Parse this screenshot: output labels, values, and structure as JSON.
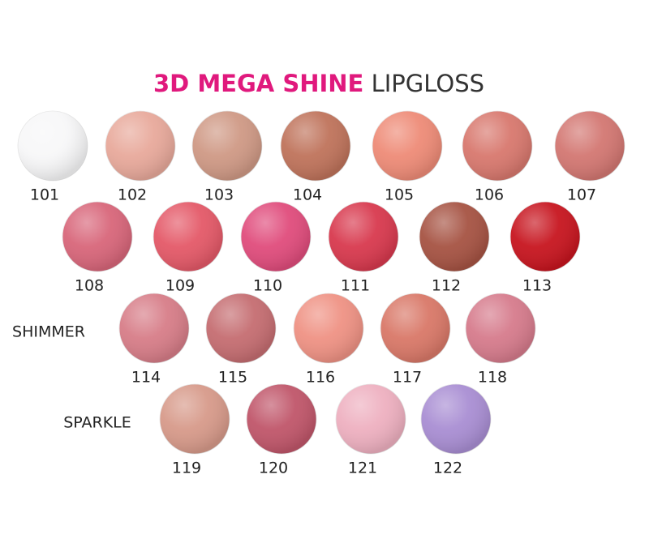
{
  "title": {
    "brand": "3D MEGA SHINE",
    "product": "LIPGLOSS"
  },
  "groups": [
    {
      "swatches": [
        {
          "code": "101",
          "color": "#f7f7f8"
        },
        {
          "code": "102",
          "color": "#e8a99b"
        },
        {
          "code": "103",
          "color": "#cf9985"
        },
        {
          "code": "104",
          "color": "#bf735b"
        },
        {
          "code": "105",
          "color": "#ee8b77"
        },
        {
          "code": "106",
          "color": "#d8786e"
        },
        {
          "code": "107",
          "color": "#d37772"
        }
      ]
    },
    {
      "swatches": [
        {
          "code": "108",
          "color": "#d8667a"
        },
        {
          "code": "109",
          "color": "#e45968"
        },
        {
          "code": "110",
          "color": "#e04c7c"
        },
        {
          "code": "111",
          "color": "#d8394e"
        },
        {
          "code": "112",
          "color": "#a65343"
        },
        {
          "code": "113",
          "color": "#c7151f"
        }
      ]
    },
    {
      "label": "SHIMMER",
      "swatches": [
        {
          "code": "114",
          "color": "#d77d88"
        },
        {
          "code": "115",
          "color": "#c56d71"
        },
        {
          "code": "116",
          "color": "#ef9284"
        },
        {
          "code": "117",
          "color": "#d97868"
        },
        {
          "code": "118",
          "color": "#d67b8c"
        }
      ]
    },
    {
      "label": "SPARKLE",
      "swatches": [
        {
          "code": "119",
          "color": "#d79a8a"
        },
        {
          "code": "120",
          "color": "#c0566a"
        },
        {
          "code": "121",
          "color": "#eeb0c0"
        },
        {
          "code": "122",
          "color": "#a98ed3"
        }
      ]
    }
  ]
}
